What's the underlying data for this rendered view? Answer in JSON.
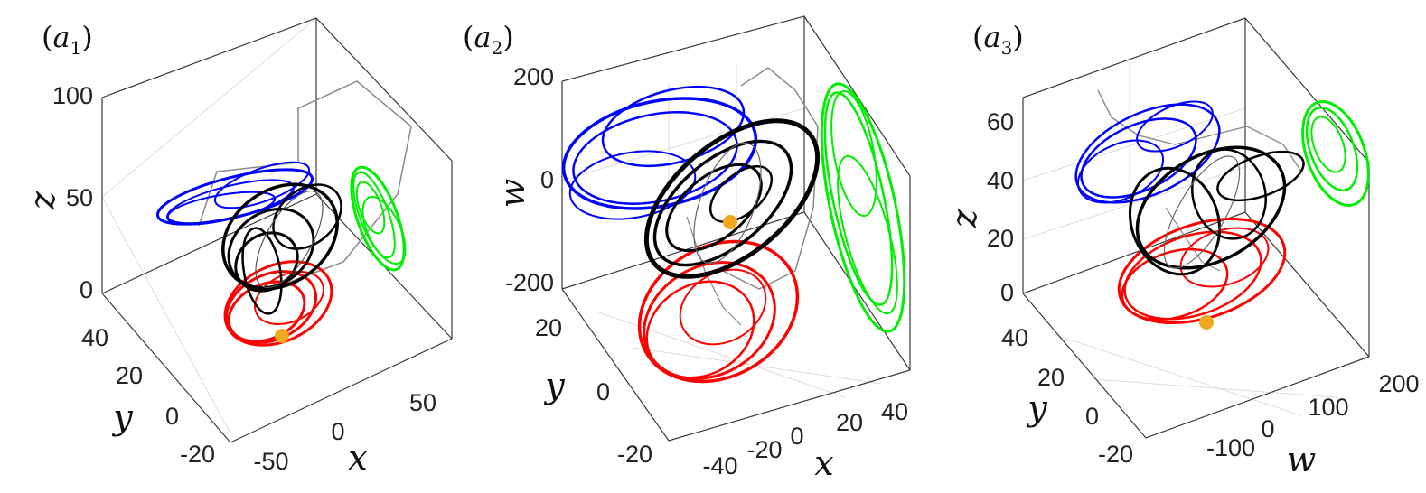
{
  "colors": {
    "series_1": "#ff0000",
    "series_2": "#0000ff",
    "series_3": "#00ee00",
    "series_4": "#000000",
    "connector": "#8a8a8a",
    "marker": "#f0a820"
  },
  "chart_data": [
    {
      "type": "line",
      "subtype": "3d-trajectory",
      "panel_label": "(a1)",
      "panel_letter": "a",
      "panel_index": "1",
      "axes": {
        "x": {
          "label": "x",
          "ticks": [
            "-50",
            "0",
            "50"
          ]
        },
        "y": {
          "label": "y",
          "ticks": [
            "-20",
            "0",
            "20",
            "40"
          ]
        },
        "z": {
          "label": "z",
          "ticks": [
            "0",
            "50",
            "100"
          ]
        }
      },
      "grid": true,
      "marker": "orange point near x≈-15, y≈20, z≈0",
      "series": [
        {
          "color": "red",
          "center": [
            -25,
            20,
            0
          ],
          "rx": 45,
          "ry": 38,
          "loops": 14
        },
        {
          "color": "blue",
          "center": [
            -15,
            40,
            55
          ],
          "rx": 90,
          "ry": 18,
          "loops": 10
        },
        {
          "color": "green",
          "center": [
            45,
            0,
            35
          ],
          "rx": 20,
          "ry": 45,
          "loops": 10
        },
        {
          "color": "black",
          "center": [
            -10,
            15,
            30
          ],
          "rx": 55,
          "ry": 55,
          "loops": 16
        }
      ]
    },
    {
      "type": "line",
      "subtype": "3d-trajectory",
      "panel_label": "(a2)",
      "panel_letter": "a",
      "panel_index": "2",
      "axes": {
        "x": {
          "label": "x",
          "ticks": [
            "-40",
            "-20",
            "0",
            "20",
            "40"
          ]
        },
        "y": {
          "label": "y",
          "ticks": [
            "-20",
            "0",
            "20"
          ]
        },
        "w": {
          "label": "w",
          "ticks": [
            "-200",
            "0",
            "200"
          ]
        }
      },
      "grid": true,
      "marker": "orange point near x≈-15, y≈5, w≈-40",
      "series": [
        {
          "color": "red",
          "center": [
            -20,
            0,
            -180
          ],
          "rx": 85,
          "ry": 70,
          "loops": 14
        },
        {
          "color": "blue",
          "center": [
            -30,
            15,
            80
          ],
          "rx": 110,
          "ry": 50,
          "loops": 10
        },
        {
          "color": "green",
          "center": [
            40,
            10,
            0
          ],
          "rx": 30,
          "ry": 125,
          "loops": 10
        },
        {
          "color": "black",
          "center": [
            -5,
            5,
            40
          ],
          "rx": 80,
          "ry": 80,
          "loops": 16
        }
      ]
    },
    {
      "type": "line",
      "subtype": "3d-trajectory",
      "panel_label": "(a3)",
      "panel_letter": "a",
      "panel_index": "3",
      "axes": {
        "w": {
          "label": "w",
          "ticks": [
            "-100",
            "0",
            "100",
            "200"
          ]
        },
        "y": {
          "label": "y",
          "ticks": [
            "-20",
            "0",
            "20",
            "40"
          ]
        },
        "z": {
          "label": "z",
          "ticks": [
            "0",
            "20",
            "40",
            "60"
          ]
        }
      },
      "grid": true,
      "marker": "orange point near w≈-50, y≈25, z≈0",
      "series": [
        {
          "color": "red",
          "center": [
            -20,
            20,
            10
          ],
          "rx": 95,
          "ry": 50,
          "loops": 14
        },
        {
          "color": "blue",
          "center": [
            -60,
            40,
            50
          ],
          "rx": 80,
          "ry": 45,
          "loops": 10
        },
        {
          "color": "green",
          "center": [
            170,
            0,
            45
          ],
          "rx": 35,
          "ry": 55,
          "loops": 10
        },
        {
          "color": "black",
          "center": [
            0,
            15,
            35
          ],
          "rx": 85,
          "ry": 60,
          "loops": 16
        }
      ]
    }
  ]
}
